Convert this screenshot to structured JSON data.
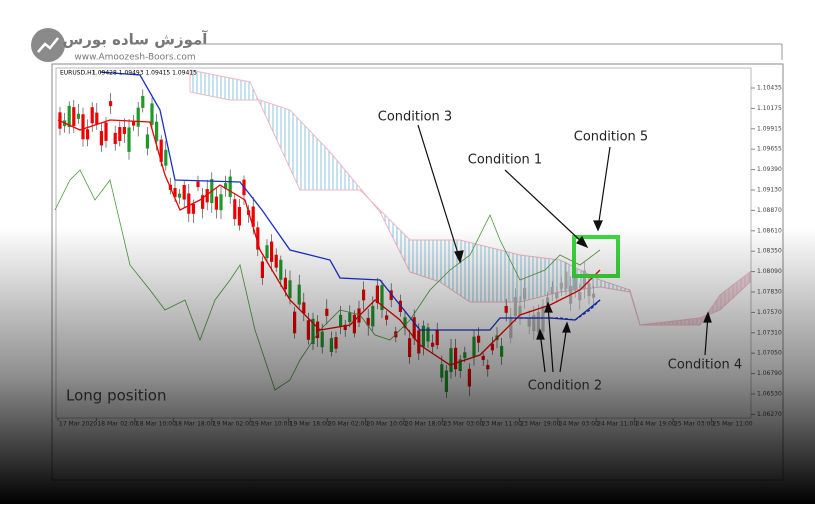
{
  "logo": {
    "title": "آموزش ساده بورس",
    "url": "www.Amoozesh-Boors.com"
  },
  "chart": {
    "symbol": "EURUSD,H1",
    "quote": "1.09428 1.09493 1.09415 1.09415",
    "price_labels": [
      "1.10435",
      "1.10175",
      "1.09915",
      "1.09655",
      "1.09390",
      "1.09130",
      "1.08870",
      "1.08610",
      "1.08350",
      "1.08090",
      "1.07830",
      "1.07570",
      "1.07310",
      "1.07050",
      "1.06790",
      "1.06530",
      "1.06270"
    ],
    "time_labels": [
      "17 Mar 2020",
      "18 Mar 02:00",
      "18 Mar 10:00",
      "18 Mar 18:00",
      "19 Mar 02:00",
      "19 Mar 10:00",
      "19 Mar 18:00",
      "20 Mar 02:00",
      "20 Mar 10:00",
      "20 Mar 18:00",
      "23 Mar 03:00",
      "23 Mar 11:00",
      "23 Mar 19:00",
      "24 Mar 03:00",
      "24 Mar 11:00",
      "24 Mar 19:00",
      "25 Mar 03:00",
      "25 Mar 11:00"
    ]
  },
  "annotations": {
    "condition_1": "Condition 1",
    "condition_2": "Condition 2",
    "condition_3": "Condition 3",
    "condition_4": "Condition 4",
    "condition_5": "Condition 5",
    "position": "Long position"
  }
}
